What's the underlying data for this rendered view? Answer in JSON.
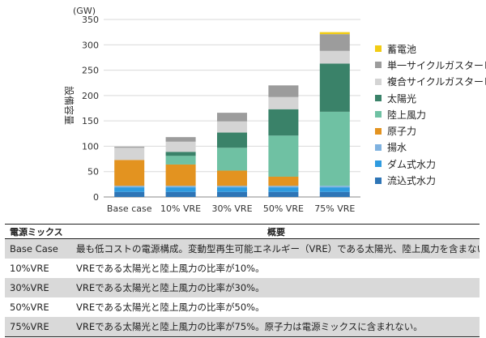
{
  "chart_data": {
    "type": "bar",
    "stacked": true,
    "unit_label": "(GW)",
    "ylabel": "設備容量",
    "ylim": [
      0,
      350
    ],
    "yticks": [
      0,
      50,
      100,
      150,
      200,
      250,
      300,
      350
    ],
    "categories": [
      "Base case",
      "10% VRE",
      "30% VRE",
      "50% VRE",
      "75% VRE"
    ],
    "series": [
      {
        "name": "流込式水力",
        "color": "#2e75b6",
        "values": [
          10,
          10,
          10,
          10,
          10
        ]
      },
      {
        "name": "ダム式水力",
        "color": "#2e9be0",
        "values": [
          9,
          9,
          9,
          9,
          9
        ]
      },
      {
        "name": "揚水",
        "color": "#7fb2e0",
        "values": [
          3,
          3,
          3,
          3,
          3
        ]
      },
      {
        "name": "原子力",
        "color": "#e39320",
        "values": [
          51,
          42,
          30,
          18,
          0
        ]
      },
      {
        "name": "陸上風力",
        "color": "#6fc1a3",
        "values": [
          0,
          17,
          45,
          81,
          146
        ]
      },
      {
        "name": "太陽光",
        "color": "#3a8269",
        "values": [
          0,
          8,
          30,
          52,
          95
        ]
      },
      {
        "name": "複合サイクルガスタービン",
        "color": "#d4d4d4",
        "values": [
          24,
          20,
          22,
          24,
          25
        ]
      },
      {
        "name": "単一サイクルガスタービン",
        "color": "#9c9c9c",
        "values": [
          2,
          9,
          17,
          23,
          33
        ]
      },
      {
        "name": "蓄電池",
        "color": "#f2cc14",
        "values": [
          0,
          0,
          0,
          0,
          4
        ]
      }
    ],
    "grid": "horizontal",
    "legend_position": "right"
  },
  "table": {
    "headers": [
      "電源ミックス",
      "概要"
    ],
    "rows": [
      [
        "Base Case",
        "最も低コストの電源構成。変動型再生可能エネルギー（VRE）である太陽光、陸上風力を含まない。"
      ],
      [
        "10%VRE",
        "VREである太陽光と陸上風力の比率が10%。"
      ],
      [
        "30%VRE",
        "VREである太陽光と陸上風力の比率が30%。"
      ],
      [
        "50%VRE",
        "VREである太陽光と陸上風力の比率が50%。"
      ],
      [
        "75%VRE",
        "VREである太陽光と陸上風力の比率が75%。原子力は電源ミックスに含まれない。"
      ]
    ]
  }
}
